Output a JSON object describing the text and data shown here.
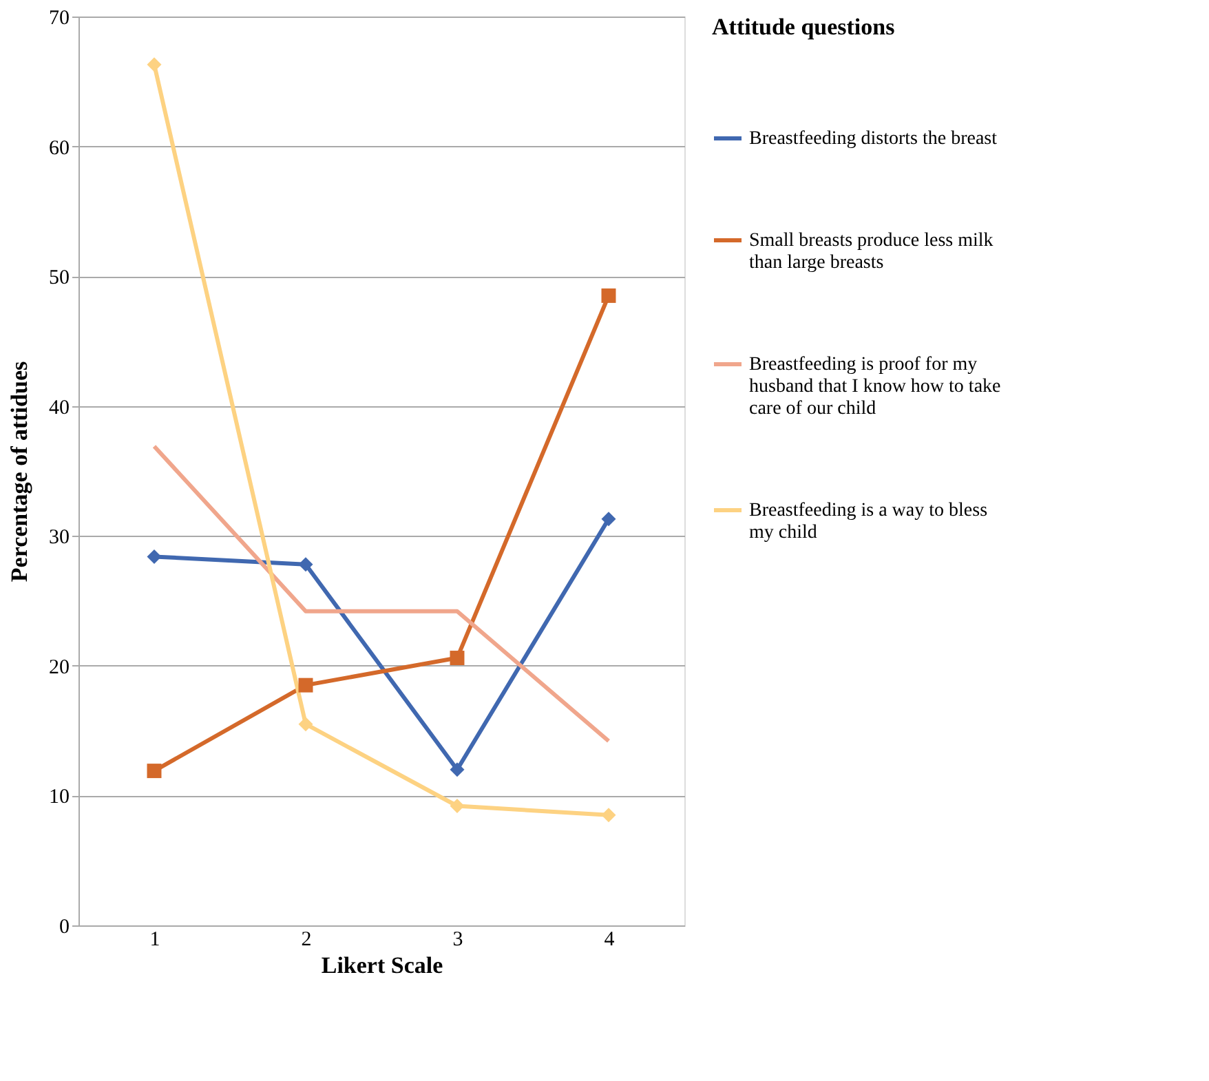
{
  "chart_data": {
    "type": "line",
    "xlabel": "Likert Scale",
    "ylabel": "Percentage of attidues",
    "legend_title": "Attitude questions",
    "categories": [
      "1",
      "2",
      "3",
      "4"
    ],
    "series": [
      {
        "name": "Breastfeeding distorts the breast",
        "color": "#4068b0",
        "marker": "diamond",
        "values": [
          28.4,
          27.8,
          12.0,
          31.3
        ]
      },
      {
        "name": "Small breasts produce less milk than large breasts",
        "color": "#d4692a",
        "marker": "square",
        "values": [
          11.9,
          18.5,
          20.6,
          48.5
        ]
      },
      {
        "name": "Breastfeeding is proof for my husband that I know how to take care of our child",
        "color": "#f0a68c",
        "marker": "none",
        "values": [
          36.9,
          24.2,
          24.2,
          14.2
        ]
      },
      {
        "name": "Breastfeeding is a way to bless my child",
        "color": "#fdd282",
        "marker": "diamond",
        "values": [
          66.3,
          15.5,
          9.2,
          8.5
        ]
      }
    ],
    "ylim": [
      0,
      70
    ],
    "yticks": [
      0,
      10,
      20,
      30,
      40,
      50,
      60,
      70
    ],
    "grid": "y",
    "legend": "right",
    "line_style": "solid"
  }
}
